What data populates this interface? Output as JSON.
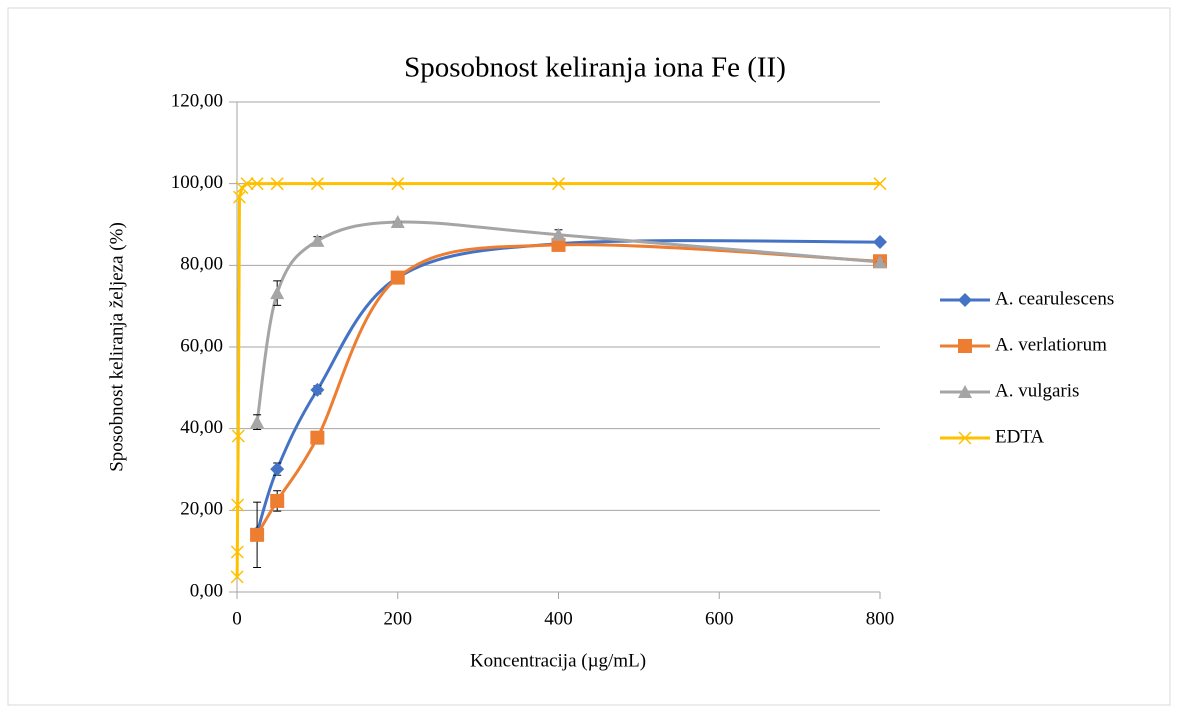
{
  "chart_data": {
    "type": "line",
    "title": "Sposobnost keliranja iona Fe (II)",
    "x_label": "Koncentracija (µg/mL)",
    "y_label": "Sposobnost keliranja željeza (%)",
    "xlim": [
      0,
      800
    ],
    "xticks": [
      0,
      200,
      400,
      600,
      800
    ],
    "ylim": [
      0,
      120
    ],
    "yticks": [
      {
        "value": 0,
        "label": "0,00"
      },
      {
        "value": 20,
        "label": "20,00"
      },
      {
        "value": 40,
        "label": "40,00"
      },
      {
        "value": 60,
        "label": "60,00"
      },
      {
        "value": 80,
        "label": "80,00"
      },
      {
        "value": 100,
        "label": "100,00"
      },
      {
        "value": 120,
        "label": "120,00"
      }
    ],
    "grid": true,
    "legend": "right",
    "series": [
      {
        "name": "A. cearulescens",
        "color": "#4472c4",
        "marker": "diamond",
        "smooth": true,
        "x": [
          25,
          50,
          100,
          200,
          400,
          800
        ],
        "values": [
          14.5,
          30.1,
          49.5,
          77,
          85.3,
          85.7
        ],
        "errors": [
          0,
          1.5,
          1,
          0,
          0,
          0
        ]
      },
      {
        "name": "A. verlatiorum",
        "color": "#ed7d31",
        "marker": "square",
        "smooth": true,
        "x": [
          25,
          50,
          100,
          200,
          400,
          800
        ],
        "values": [
          14,
          22.3,
          37.8,
          77,
          85,
          81
        ],
        "errors": [
          8,
          2.5,
          0,
          0,
          0,
          0
        ]
      },
      {
        "name": "A. vulgaris",
        "color": "#a5a5a5",
        "marker": "triangle",
        "smooth": true,
        "x": [
          25,
          50,
          100,
          200,
          400,
          800
        ],
        "values": [
          41.6,
          73.2,
          86,
          90.6,
          87.5,
          80.8
        ],
        "errors": [
          1.8,
          3,
          1,
          0,
          1.2,
          0
        ]
      },
      {
        "name": "EDTA",
        "color": "#ffc000",
        "marker": "x",
        "smooth": false,
        "x": [
          0.2,
          0.4,
          0.8,
          1.6,
          3.1,
          6.25,
          12.5,
          25,
          50,
          100,
          200,
          400,
          800
        ],
        "values": [
          3.7,
          9.8,
          21.3,
          38.2,
          96.7,
          99,
          100,
          100,
          100,
          100,
          100,
          100,
          100
        ]
      }
    ]
  }
}
